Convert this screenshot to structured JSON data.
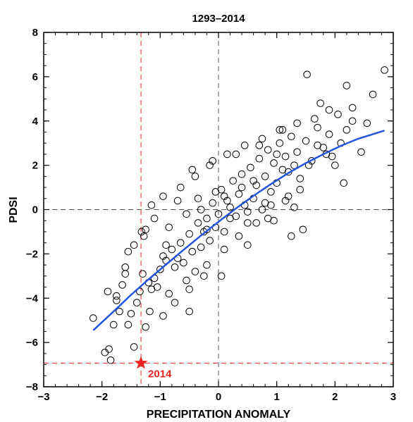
{
  "chart_data": {
    "type": "scatter",
    "title": "1293–2014",
    "xlabel": "PRECIPITATION ANOMALY",
    "ylabel": "PDSI",
    "xlim": [
      -3,
      3
    ],
    "ylim": [
      -8,
      8
    ],
    "xticks": [
      -3,
      -2,
      -1,
      0,
      1,
      2,
      3
    ],
    "yticks": [
      -8,
      -6,
      -4,
      -2,
      0,
      2,
      4,
      6,
      8
    ],
    "xtick_labels": [
      "−3",
      "−2",
      "−1",
      "0",
      "1",
      "2",
      "3"
    ],
    "ytick_labels": [
      "−8",
      "−6",
      "−4",
      "−2",
      "0",
      "2",
      "4",
      "6",
      "8"
    ],
    "grid": false,
    "marker_color": "#000000",
    "fit_color": "#2255dd",
    "highlight_color": "#ee2222",
    "reference_lines": {
      "horizontal_zero": 0,
      "vertical_zero": 0,
      "highlight_x": -1.33,
      "highlight_y": -6.93
    },
    "fit_curve": {
      "x": [
        -2.15,
        -1.8,
        -1.5,
        -1.2,
        -0.9,
        -0.6,
        -0.3,
        0.0,
        0.3,
        0.6,
        0.9,
        1.2,
        1.5,
        1.8,
        2.1,
        2.4,
        2.85
      ],
      "y": [
        -5.45,
        -4.6,
        -3.85,
        -3.15,
        -2.48,
        -1.82,
        -1.17,
        -0.55,
        0.05,
        0.62,
        1.15,
        1.65,
        2.1,
        2.5,
        2.88,
        3.2,
        3.57
      ]
    },
    "highlight_point": {
      "label": "2014",
      "x": -1.33,
      "y": -6.93
    },
    "series": [
      {
        "x": [
          -2.15,
          -1.95,
          -1.88,
          -1.85,
          -1.8,
          -1.75,
          -1.7,
          -1.55,
          -1.45,
          -1.65,
          -1.6,
          -1.5,
          -1.4,
          -1.35,
          -1.3,
          -1.25,
          -1.2,
          -1.18,
          -1.15,
          -1.1,
          -1.05,
          -1.0,
          -0.95,
          -0.9,
          -0.85,
          -0.8,
          -0.75,
          -0.7,
          -0.65,
          -0.6,
          -0.55,
          -0.5,
          -0.45,
          -0.4,
          -0.35,
          -0.3,
          -0.25,
          -0.2,
          -0.15,
          -0.1,
          -0.05,
          0.0,
          0.05,
          0.1,
          0.15,
          0.2,
          0.25,
          0.3,
          0.35,
          0.4,
          0.45,
          0.5,
          0.55,
          0.6,
          0.65,
          0.7,
          0.75,
          0.8,
          0.85,
          0.9,
          0.95,
          1.0,
          1.05,
          1.1,
          1.15,
          1.2,
          1.25,
          1.3,
          1.35,
          1.4,
          1.5,
          1.6,
          1.7,
          1.8,
          1.9,
          2.0,
          2.05,
          2.1,
          2.2,
          2.3,
          2.45,
          2.55,
          2.65,
          2.85,
          1.52,
          -1.32,
          -1.28,
          -0.9,
          -0.95,
          -0.55,
          -0.35,
          -0.2,
          -0.05,
          0.2,
          0.4,
          0.6,
          0.8,
          1.0,
          1.2,
          1.4,
          1.7,
          1.9,
          2.15,
          2.3,
          -1.75,
          -1.6,
          -1.45,
          -1.1,
          -0.85,
          -0.7,
          -0.45,
          -0.3,
          -0.1,
          0.1,
          0.3,
          0.5,
          0.7,
          0.9,
          1.1,
          1.3,
          1.55,
          1.75,
          1.95,
          2.2,
          -0.5,
          -0.25,
          0.05,
          0.35,
          0.65,
          0.95,
          1.25,
          1.45,
          -1.15,
          -0.95,
          -0.65,
          -0.4,
          -0.15,
          0.15,
          0.45,
          0.75,
          1.05,
          1.35,
          1.65,
          -1.9,
          -1.55,
          -1.25,
          -0.75,
          -0.5,
          -0.2,
          0.1,
          0.5,
          0.85,
          1.15,
          1.85
        ],
        "y": [
          -4.9,
          -6.45,
          -6.3,
          -6.8,
          -5.2,
          -4.1,
          -4.6,
          -5.2,
          -6.2,
          -3.4,
          -2.6,
          -4.7,
          -4.2,
          -3.7,
          -2.9,
          -5.3,
          -3.3,
          -4.6,
          -3.6,
          -3.1,
          -3.5,
          -2.7,
          -4.8,
          -2.3,
          -3.8,
          -1.8,
          -2.6,
          -2.2,
          -1.5,
          -2.4,
          -3.2,
          -1.1,
          -1.9,
          -2.8,
          -0.6,
          -1.7,
          -1.0,
          -0.4,
          -1.4,
          0.3,
          -0.8,
          -0.2,
          0.9,
          -1.0,
          0.4,
          0.1,
          1.3,
          -0.3,
          0.7,
          1.6,
          0.2,
          -0.6,
          1.9,
          0.5,
          1.1,
          2.3,
          0.0,
          1.5,
          2.7,
          0.8,
          2.1,
          1.2,
          3.0,
          1.8,
          2.4,
          0.6,
          3.3,
          2.0,
          2.6,
          1.4,
          3.1,
          2.2,
          3.7,
          2.8,
          3.4,
          2.0,
          4.3,
          3.0,
          3.6,
          4.6,
          2.6,
          3.9,
          5.2,
          6.3,
          6.1,
          -1.0,
          -1.2,
          -1.6,
          -2.1,
          -0.2,
          0.5,
          -0.9,
          0.8,
          -0.4,
          1.0,
          1.3,
          0.3,
          2.5,
          1.7,
          0.9,
          2.9,
          4.5,
          1.2,
          4.0,
          -3.9,
          -2.9,
          -1.6,
          -0.4,
          -0.8,
          0.4,
          1.8,
          0.0,
          2.2,
          0.6,
          2.5,
          -0.1,
          2.9,
          0.2,
          3.6,
          0.1,
          2.0,
          4.8,
          2.4,
          5.6,
          -3.6,
          -3.0,
          -3.0,
          -1.2,
          -0.6,
          -0.5,
          -1.2,
          -0.9,
          0.2,
          0.6,
          1.0,
          1.5,
          2.0,
          2.5,
          2.9,
          3.2,
          3.6,
          3.9,
          4.1,
          -3.7,
          -1.9,
          -0.9,
          -4.2,
          -4.6,
          -2.5,
          -1.8,
          -1.6,
          -0.4,
          0.4,
          2.5
        ]
      }
    ]
  }
}
